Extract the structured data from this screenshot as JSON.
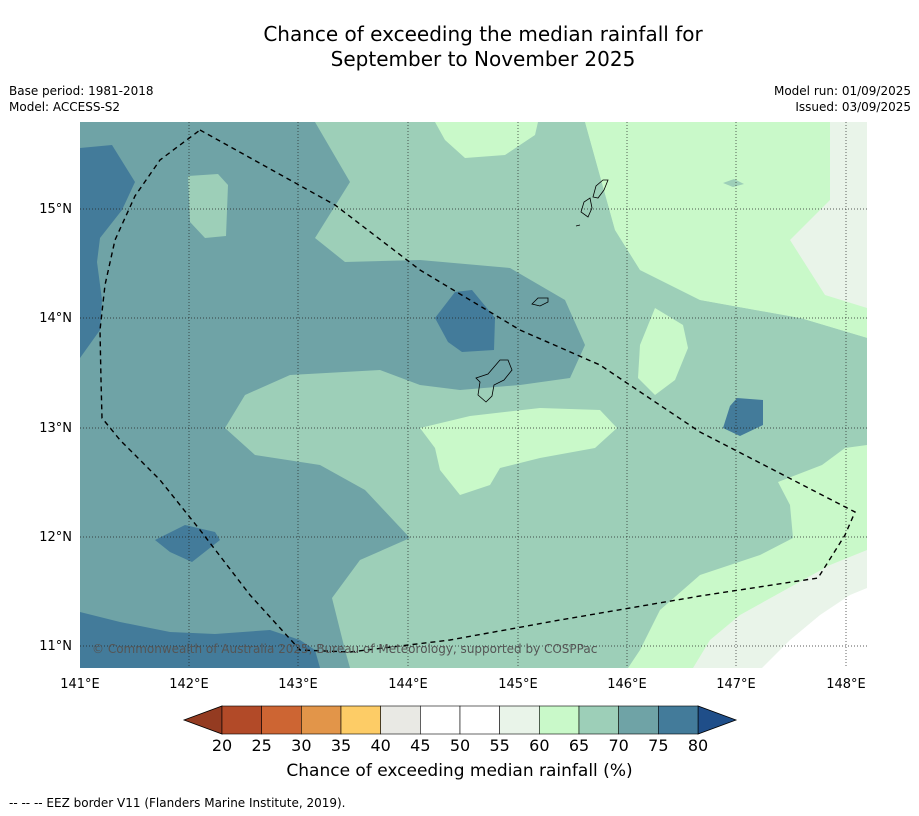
{
  "title_line1": "Chance of exceeding the median rainfall for",
  "title_line2": "September to November 2025",
  "meta": {
    "base_period": "Base period: 1981-2018",
    "model": "Model: ACCESS-S2",
    "model_run": "Model run: 01/09/2025",
    "issued": "Issued: 03/09/2025"
  },
  "map": {
    "lon_labels": [
      "141°E",
      "142°E",
      "143°E",
      "144°E",
      "145°E",
      "146°E",
      "147°E",
      "148°E"
    ],
    "lat_labels": [
      "15°N",
      "14°N",
      "13°N",
      "12°N",
      "11°N"
    ],
    "copyright": "© Commonwealth of Australia 2025, Bureau of Meteorology, supported by COSPPac",
    "colors": {
      "c70_75": "#6fa3a6",
      "c75_80": "#437b9a",
      "c65_70": "#9dcfb8",
      "c60_65": "#c9f9c9",
      "c55_60": "#e9f4e9"
    }
  },
  "colorbar": {
    "ticks": [
      "20",
      "25",
      "30",
      "35",
      "40",
      "45",
      "50",
      "55",
      "60",
      "65",
      "70",
      "75",
      "80"
    ],
    "colors": [
      "#b24a28",
      "#cd6533",
      "#e29549",
      "#fdcc66",
      "#e9e9e4",
      "#ffffff",
      "#ffffff",
      "#e9f4e9",
      "#c9f9c9",
      "#9dcfb8",
      "#6fa3a6",
      "#437b9a"
    ],
    "under_color": "#943b21",
    "over_color": "#1f4e89",
    "label": "Chance of exceeding median rainfall (%)"
  },
  "footnote": "--  --  -- EEZ border V11 (Flanders Marine Institute, 2019)."
}
